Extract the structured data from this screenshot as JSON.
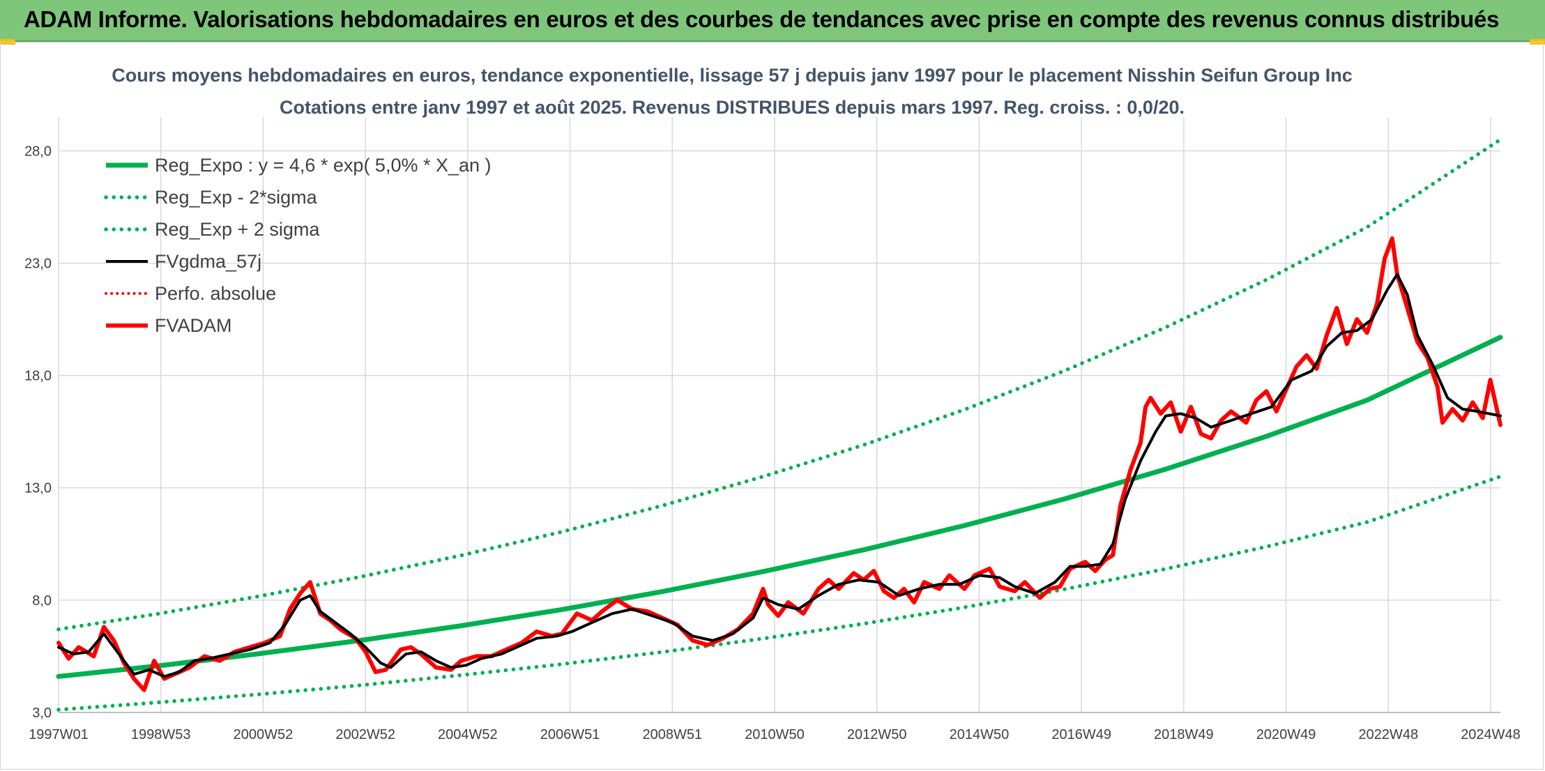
{
  "header": {
    "banner_title": "ADAM Informe. Valorisations hebdomadaires en euros et des courbes de tendances avec prise en compte des revenus connus distribués"
  },
  "chart_data": {
    "type": "line",
    "title": "Cours moyens hebdomadaires en euros, tendance exponentielle, lissage 57 j depuis janv 1997 pour le placement Nisshin Seifun Group Inc",
    "subtitle": "Cotations entre janv 1997 et août 2025. Revenus DISTRIBUES depuis mars 1997. Reg. croiss. : 0,0/20.",
    "xlabel": "",
    "ylabel": "",
    "x_ticks": [
      "1997W01",
      "1998W53",
      "2000W52",
      "2002W52",
      "2004W52",
      "2006W51",
      "2008W51",
      "2010W50",
      "2012W50",
      "2014W50",
      "2016W49",
      "2018W49",
      "2020W49",
      "2022W48",
      "2024W48"
    ],
    "y_ticks": [
      "3,0",
      "8,0",
      "13,0",
      "18,0",
      "23,0",
      "28,0"
    ],
    "xlim": [
      1997.0,
      2025.65
    ],
    "ylim": [
      3.0,
      29.5
    ],
    "grid": true,
    "legend_position": "top-left",
    "colors": {
      "reg_expo": "#00b050",
      "fvgdma": "#000000",
      "fvadam": "#ff0000",
      "perfo": "#ff0000",
      "grid": "#d9d9d9"
    },
    "series": [
      {
        "name": "Reg_Expo : y = 4,6 * exp( 5,0% *  X_an )",
        "style": "solid-green",
        "points": [
          [
            1997.0,
            4.6
          ],
          [
            1999.0,
            5.08
          ],
          [
            2001.0,
            5.62
          ],
          [
            2003.0,
            6.21
          ],
          [
            2005.0,
            6.86
          ],
          [
            2007.0,
            7.58
          ],
          [
            2009.0,
            8.38
          ],
          [
            2011.0,
            9.27
          ],
          [
            2013.0,
            10.24
          ],
          [
            2015.0,
            11.32
          ],
          [
            2017.0,
            12.51
          ],
          [
            2019.0,
            13.83
          ],
          [
            2021.0,
            15.29
          ],
          [
            2023.0,
            16.9
          ],
          [
            2025.65,
            19.7
          ]
        ]
      },
      {
        "name": "Reg_Exp - 2*sigma",
        "style": "dotted-green",
        "points": [
          [
            1997.0,
            3.12
          ],
          [
            1999.0,
            3.45
          ],
          [
            2001.0,
            3.81
          ],
          [
            2003.0,
            4.21
          ],
          [
            2005.0,
            4.66
          ],
          [
            2007.0,
            5.15
          ],
          [
            2009.0,
            5.69
          ],
          [
            2011.0,
            6.29
          ],
          [
            2013.0,
            6.95
          ],
          [
            2015.0,
            7.68
          ],
          [
            2017.0,
            8.49
          ],
          [
            2019.0,
            9.39
          ],
          [
            2021.0,
            10.38
          ],
          [
            2023.0,
            11.47
          ],
          [
            2025.65,
            13.5
          ]
        ]
      },
      {
        "name": "Reg_Exp + 2 sigma",
        "style": "dotted-green",
        "points": [
          [
            1997.0,
            6.7
          ],
          [
            1999.0,
            7.4
          ],
          [
            2001.0,
            8.18
          ],
          [
            2003.0,
            9.04
          ],
          [
            2005.0,
            9.99
          ],
          [
            2007.0,
            11.04
          ],
          [
            2009.0,
            12.21
          ],
          [
            2011.0,
            13.5
          ],
          [
            2013.0,
            14.91
          ],
          [
            2015.0,
            16.48
          ],
          [
            2017.0,
            18.22
          ],
          [
            2019.0,
            20.14
          ],
          [
            2021.0,
            22.26
          ],
          [
            2023.0,
            24.6
          ],
          [
            2025.65,
            28.5
          ]
        ]
      },
      {
        "name": "FVgdma_57j",
        "style": "solid-black",
        "points": [
          [
            1997.0,
            5.9
          ],
          [
            1997.3,
            5.6
          ],
          [
            1997.6,
            5.7
          ],
          [
            1997.9,
            6.5
          ],
          [
            1998.2,
            5.6
          ],
          [
            1998.5,
            4.7
          ],
          [
            1998.8,
            4.9
          ],
          [
            1999.1,
            4.6
          ],
          [
            1999.4,
            4.8
          ],
          [
            1999.7,
            5.3
          ],
          [
            2000.0,
            5.4
          ],
          [
            2000.4,
            5.6
          ],
          [
            2000.8,
            5.8
          ],
          [
            2001.2,
            6.1
          ],
          [
            2001.5,
            6.9
          ],
          [
            2001.8,
            8.0
          ],
          [
            2002.0,
            8.2
          ],
          [
            2002.2,
            7.5
          ],
          [
            2002.5,
            7.0
          ],
          [
            2002.8,
            6.5
          ],
          [
            2003.1,
            5.9
          ],
          [
            2003.4,
            5.2
          ],
          [
            2003.6,
            5.0
          ],
          [
            2003.9,
            5.6
          ],
          [
            2004.2,
            5.7
          ],
          [
            2004.5,
            5.3
          ],
          [
            2004.8,
            5.0
          ],
          [
            2005.1,
            5.1
          ],
          [
            2005.4,
            5.4
          ],
          [
            2005.8,
            5.6
          ],
          [
            2006.1,
            5.9
          ],
          [
            2006.5,
            6.3
          ],
          [
            2006.9,
            6.4
          ],
          [
            2007.2,
            6.6
          ],
          [
            2007.6,
            7.0
          ],
          [
            2008.0,
            7.4
          ],
          [
            2008.4,
            7.6
          ],
          [
            2008.8,
            7.3
          ],
          [
            2009.2,
            7.0
          ],
          [
            2009.6,
            6.4
          ],
          [
            2010.0,
            6.2
          ],
          [
            2010.4,
            6.5
          ],
          [
            2010.8,
            7.2
          ],
          [
            2011.0,
            8.1
          ],
          [
            2011.3,
            7.8
          ],
          [
            2011.7,
            7.6
          ],
          [
            2012.1,
            8.2
          ],
          [
            2012.5,
            8.7
          ],
          [
            2012.9,
            8.9
          ],
          [
            2013.3,
            8.8
          ],
          [
            2013.7,
            8.2
          ],
          [
            2014.1,
            8.5
          ],
          [
            2014.5,
            8.7
          ],
          [
            2014.9,
            8.7
          ],
          [
            2015.3,
            9.1
          ],
          [
            2015.7,
            9.0
          ],
          [
            2016.0,
            8.6
          ],
          [
            2016.4,
            8.3
          ],
          [
            2016.8,
            8.8
          ],
          [
            2017.1,
            9.5
          ],
          [
            2017.4,
            9.5
          ],
          [
            2017.7,
            9.6
          ],
          [
            2017.95,
            10.5
          ],
          [
            2018.2,
            12.5
          ],
          [
            2018.5,
            14.2
          ],
          [
            2018.8,
            15.5
          ],
          [
            2019.0,
            16.2
          ],
          [
            2019.3,
            16.3
          ],
          [
            2019.6,
            16.1
          ],
          [
            2019.9,
            15.7
          ],
          [
            2020.3,
            16.0
          ],
          [
            2020.7,
            16.3
          ],
          [
            2021.1,
            16.6
          ],
          [
            2021.5,
            17.8
          ],
          [
            2021.9,
            18.2
          ],
          [
            2022.2,
            19.3
          ],
          [
            2022.5,
            19.9
          ],
          [
            2022.8,
            20.0
          ],
          [
            2023.1,
            20.5
          ],
          [
            2023.4,
            21.8
          ],
          [
            2023.6,
            22.5
          ],
          [
            2023.8,
            21.6
          ],
          [
            2024.0,
            19.8
          ],
          [
            2024.3,
            18.5
          ],
          [
            2024.6,
            17.0
          ],
          [
            2024.9,
            16.5
          ],
          [
            2025.2,
            16.4
          ],
          [
            2025.65,
            16.2
          ]
        ]
      },
      {
        "name": "Perfo. absolue",
        "style": "dotted-red",
        "points": []
      },
      {
        "name": "FVADAM",
        "style": "solid-red",
        "points": [
          [
            1997.0,
            6.1
          ],
          [
            1997.2,
            5.4
          ],
          [
            1997.4,
            5.9
          ],
          [
            1997.7,
            5.5
          ],
          [
            1997.9,
            6.8
          ],
          [
            1998.1,
            6.2
          ],
          [
            1998.3,
            5.2
          ],
          [
            1998.5,
            4.5
          ],
          [
            1998.7,
            4.0
          ],
          [
            1998.9,
            5.3
          ],
          [
            1999.1,
            4.5
          ],
          [
            1999.3,
            4.7
          ],
          [
            1999.6,
            5.0
          ],
          [
            1999.9,
            5.5
          ],
          [
            2000.2,
            5.3
          ],
          [
            2000.5,
            5.7
          ],
          [
            2000.8,
            5.9
          ],
          [
            2001.1,
            6.1
          ],
          [
            2001.4,
            6.4
          ],
          [
            2001.6,
            7.6
          ],
          [
            2001.8,
            8.3
          ],
          [
            2002.0,
            8.8
          ],
          [
            2002.2,
            7.4
          ],
          [
            2002.4,
            7.1
          ],
          [
            2002.6,
            6.7
          ],
          [
            2002.9,
            6.3
          ],
          [
            2003.1,
            5.7
          ],
          [
            2003.3,
            4.8
          ],
          [
            2003.5,
            4.9
          ],
          [
            2003.8,
            5.8
          ],
          [
            2004.0,
            5.9
          ],
          [
            2004.2,
            5.6
          ],
          [
            2004.5,
            5.0
          ],
          [
            2004.8,
            4.9
          ],
          [
            2005.0,
            5.3
          ],
          [
            2005.3,
            5.5
          ],
          [
            2005.6,
            5.5
          ],
          [
            2005.9,
            5.8
          ],
          [
            2006.2,
            6.1
          ],
          [
            2006.5,
            6.6
          ],
          [
            2006.8,
            6.4
          ],
          [
            2007.0,
            6.5
          ],
          [
            2007.3,
            7.4
          ],
          [
            2007.6,
            7.1
          ],
          [
            2007.8,
            7.5
          ],
          [
            2008.1,
            8.0
          ],
          [
            2008.4,
            7.6
          ],
          [
            2008.7,
            7.5
          ],
          [
            2009.0,
            7.2
          ],
          [
            2009.3,
            6.9
          ],
          [
            2009.6,
            6.2
          ],
          [
            2009.9,
            6.0
          ],
          [
            2010.2,
            6.3
          ],
          [
            2010.5,
            6.7
          ],
          [
            2010.8,
            7.4
          ],
          [
            2011.0,
            8.5
          ],
          [
            2011.1,
            7.8
          ],
          [
            2011.3,
            7.3
          ],
          [
            2011.5,
            7.9
          ],
          [
            2011.8,
            7.4
          ],
          [
            2012.1,
            8.5
          ],
          [
            2012.3,
            8.9
          ],
          [
            2012.5,
            8.5
          ],
          [
            2012.8,
            9.2
          ],
          [
            2013.0,
            8.9
          ],
          [
            2013.2,
            9.3
          ],
          [
            2013.4,
            8.4
          ],
          [
            2013.6,
            8.1
          ],
          [
            2013.8,
            8.5
          ],
          [
            2014.0,
            7.9
          ],
          [
            2014.2,
            8.8
          ],
          [
            2014.5,
            8.5
          ],
          [
            2014.7,
            9.1
          ],
          [
            2015.0,
            8.5
          ],
          [
            2015.2,
            9.1
          ],
          [
            2015.5,
            9.4
          ],
          [
            2015.7,
            8.6
          ],
          [
            2016.0,
            8.4
          ],
          [
            2016.2,
            8.8
          ],
          [
            2016.5,
            8.1
          ],
          [
            2016.7,
            8.5
          ],
          [
            2016.9,
            8.6
          ],
          [
            2017.1,
            9.4
          ],
          [
            2017.4,
            9.7
          ],
          [
            2017.6,
            9.3
          ],
          [
            2017.8,
            9.8
          ],
          [
            2017.95,
            10.0
          ],
          [
            2018.1,
            12.2
          ],
          [
            2018.3,
            13.8
          ],
          [
            2018.5,
            15.0
          ],
          [
            2018.6,
            16.6
          ],
          [
            2018.7,
            17.0
          ],
          [
            2018.9,
            16.3
          ],
          [
            2019.1,
            16.8
          ],
          [
            2019.3,
            15.5
          ],
          [
            2019.5,
            16.6
          ],
          [
            2019.7,
            15.4
          ],
          [
            2019.9,
            15.2
          ],
          [
            2020.1,
            16.0
          ],
          [
            2020.3,
            16.4
          ],
          [
            2020.6,
            15.9
          ],
          [
            2020.8,
            16.9
          ],
          [
            2021.0,
            17.3
          ],
          [
            2021.2,
            16.4
          ],
          [
            2021.4,
            17.4
          ],
          [
            2021.6,
            18.4
          ],
          [
            2021.8,
            18.9
          ],
          [
            2022.0,
            18.3
          ],
          [
            2022.2,
            19.8
          ],
          [
            2022.4,
            21.0
          ],
          [
            2022.6,
            19.4
          ],
          [
            2022.8,
            20.5
          ],
          [
            2023.0,
            19.9
          ],
          [
            2023.2,
            21.2
          ],
          [
            2023.35,
            23.2
          ],
          [
            2023.5,
            24.1
          ],
          [
            2023.6,
            22.5
          ],
          [
            2023.8,
            21.0
          ],
          [
            2024.0,
            19.5
          ],
          [
            2024.2,
            18.8
          ],
          [
            2024.4,
            17.5
          ],
          [
            2024.5,
            15.9
          ],
          [
            2024.7,
            16.5
          ],
          [
            2024.9,
            16.0
          ],
          [
            2025.1,
            16.8
          ],
          [
            2025.3,
            16.1
          ],
          [
            2025.45,
            17.8
          ],
          [
            2025.65,
            15.8
          ]
        ]
      }
    ]
  }
}
